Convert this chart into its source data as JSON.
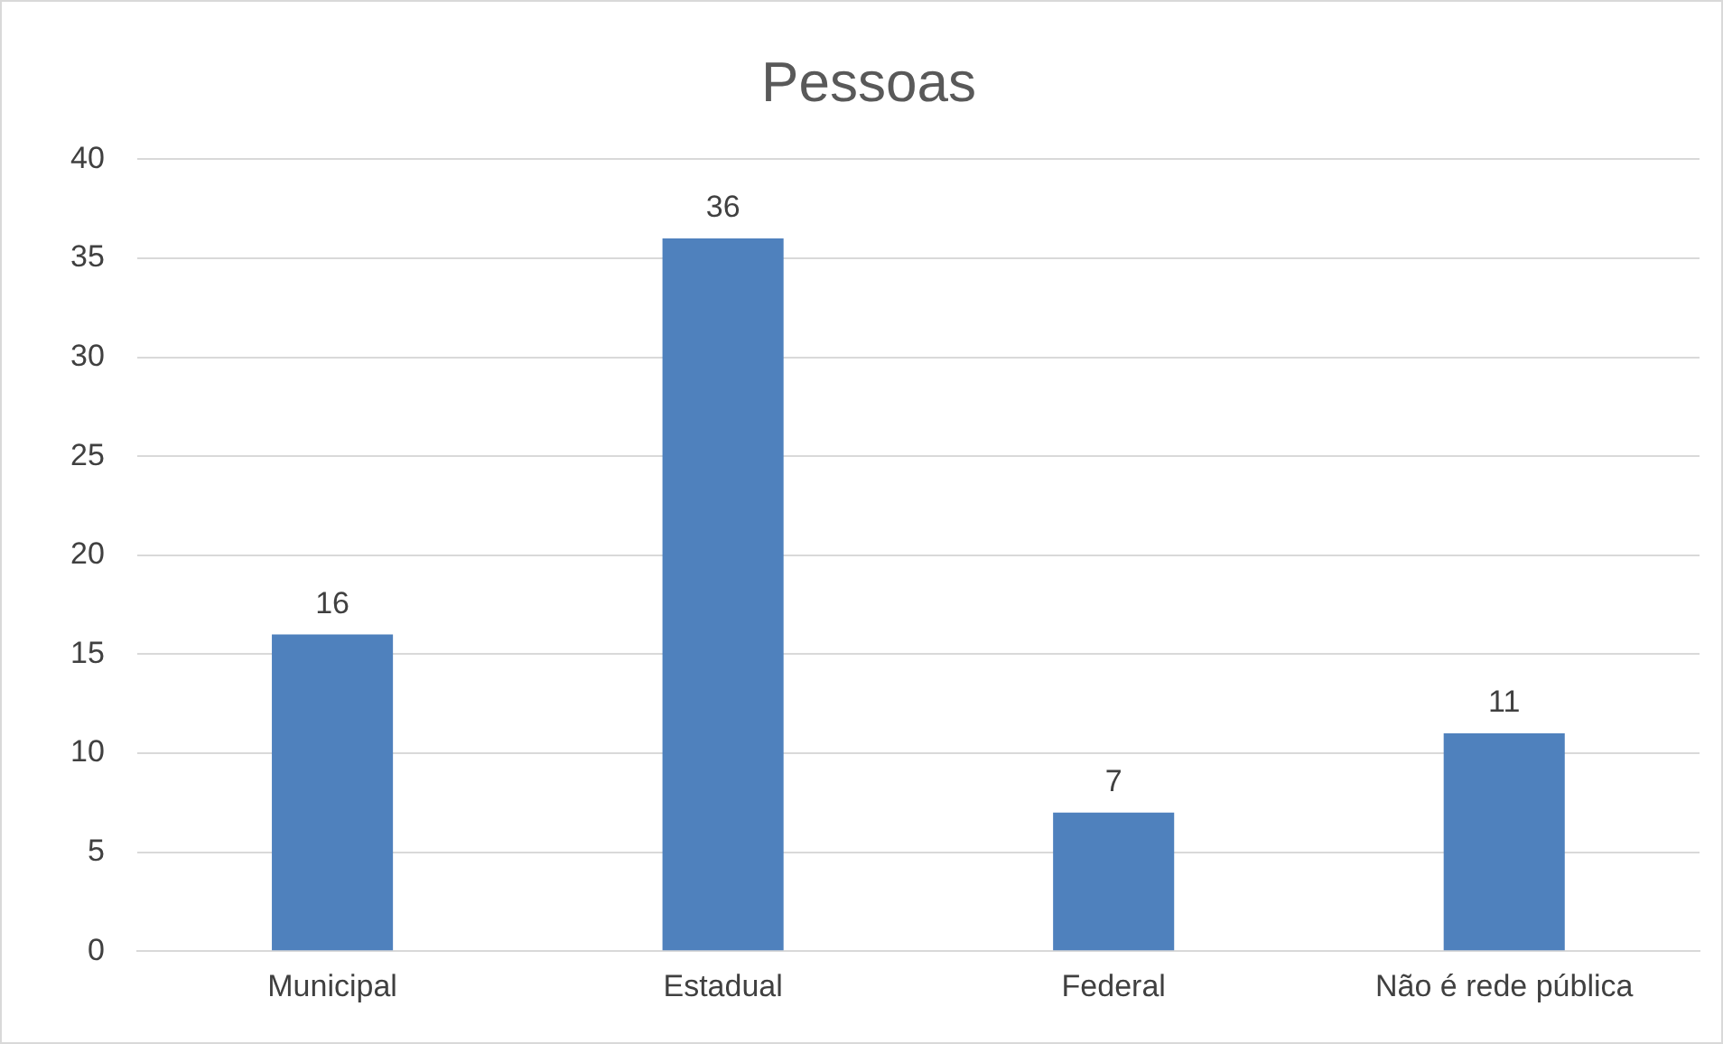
{
  "chart_data": {
    "type": "bar",
    "title": "Pessoas",
    "categories": [
      "Municipal",
      "Estadual",
      "Federal",
      "Não é rede pública"
    ],
    "values": [
      16,
      36,
      7,
      11
    ],
    "color": "#4f81bd",
    "ylim": [
      0,
      40
    ],
    "yticks": [
      0,
      5,
      10,
      15,
      20,
      25,
      30,
      35,
      40
    ],
    "grid": "y",
    "data_labels": true,
    "legend": false
  }
}
